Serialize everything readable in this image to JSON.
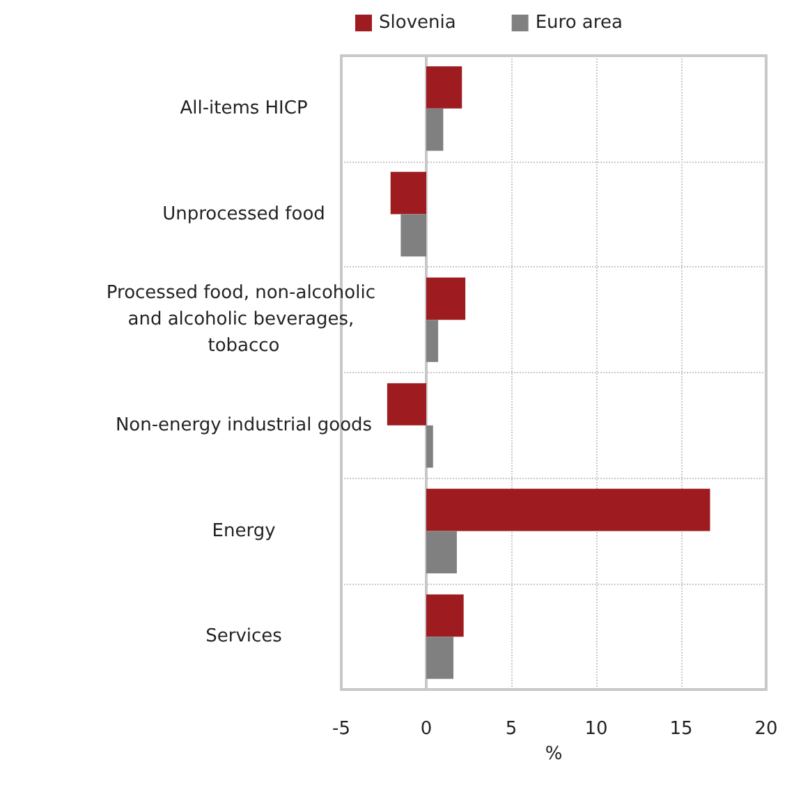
{
  "chart_data": {
    "type": "bar",
    "orientation": "horizontal",
    "xlabel": "%",
    "categories": [
      "All-items HICP",
      "Unprocessed food",
      "Processed food, non-alcoholic and alcoholic beverages, tobacco",
      "Non-energy industrial goods",
      "Energy",
      "Services"
    ],
    "series": [
      {
        "name": "Slovenia",
        "color": "#9e1b20",
        "values": [
          2.1,
          -2.1,
          2.3,
          -2.3,
          16.7,
          2.2
        ]
      },
      {
        "name": "Euro area",
        "color": "#808080",
        "values": [
          1.0,
          -1.5,
          0.7,
          0.4,
          1.8,
          1.6
        ]
      }
    ],
    "xlim": [
      -5,
      20
    ],
    "xticks": [
      -5,
      0,
      5,
      10,
      15,
      20
    ],
    "grid": true,
    "legend": "top"
  }
}
